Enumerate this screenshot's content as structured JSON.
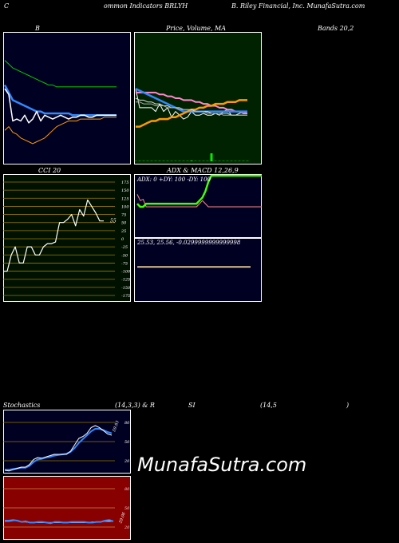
{
  "header": {
    "left": "C",
    "left2": "ommon  Indicators BRLYH",
    "right": "B. Riley Financial,  Inc. MunafaSutra.com"
  },
  "titles": {
    "bb": "B",
    "price": "Price,  Volume,  MA",
    "bands": "Bands 20,2",
    "cci": "CCI 20",
    "adx": "ADX  & MACD 12,26,9",
    "stoch": "Stochastics",
    "stoch_params": "(14,3,3) & R",
    "rsi": "SI",
    "rsi_params": "(14,5",
    "rsi_close": ")"
  },
  "adx_readout": "ADX: 0  +DY: 100  -DY: 100",
  "macd_readout": "25.53,  25.56,  -0.0299999999999998",
  "cci_last_label": "55",
  "stoch_last_label": "59.93",
  "rsi_last_label": "29.06",
  "watermark": "MunafaSutra.com",
  "colors": {
    "bb_bg": "#000022",
    "price_bg": "#002200",
    "cci_bg": "#001100",
    "adx_bg": "#000022",
    "stoch_bg": "#000022",
    "rsi_bg": "#880000",
    "blue": "#3388ff",
    "orange": "#ff9900",
    "green": "#00cc00",
    "lime": "#44ff00",
    "pink": "#ff88cc"
  },
  "chart_data": [
    {
      "type": "line",
      "title": "B",
      "series": [
        {
          "values": [
            75,
            73,
            71,
            70,
            69,
            68,
            67,
            66,
            65,
            64,
            63,
            62,
            62,
            61,
            61,
            61,
            61,
            61,
            61,
            61,
            61,
            61,
            61,
            61,
            61,
            61,
            61,
            61,
            61
          ]
        },
        {
          "values": [
            62,
            58,
            54,
            53,
            52,
            51,
            50,
            49,
            48,
            48,
            47,
            47,
            47,
            47,
            47,
            47,
            47,
            46,
            46,
            46,
            46,
            46,
            46,
            46,
            46,
            46,
            46,
            46,
            46
          ]
        },
        {
          "values": [
            38,
            40,
            37,
            36,
            34,
            33,
            32,
            31,
            32,
            33,
            34,
            36,
            38,
            40,
            41,
            42,
            43,
            43,
            43,
            44,
            44,
            44,
            44,
            44,
            44,
            45,
            45,
            45,
            45
          ]
        },
        {
          "values": [
            60,
            57,
            43,
            44,
            43,
            46,
            42,
            44,
            48,
            43,
            46,
            45,
            44,
            45,
            46,
            45,
            44,
            45,
            45,
            46,
            46,
            45,
            45,
            46,
            46,
            46,
            46,
            46,
            46
          ]
        }
      ]
    },
    {
      "type": "line",
      "title": "Price, Volume, MA",
      "series": [
        {
          "values": [
            60,
            50,
            50,
            50,
            50,
            48,
            52,
            48,
            50,
            45,
            48,
            46,
            44,
            45,
            48,
            46,
            46,
            47,
            46,
            46,
            47,
            46,
            48,
            49,
            46,
            46,
            47,
            48,
            47
          ]
        },
        {
          "values": [
            58,
            58,
            58,
            58,
            58,
            58,
            57,
            57,
            56,
            56,
            55,
            55,
            54,
            54,
            54,
            53,
            53,
            52,
            52,
            51,
            51,
            50,
            50,
            49,
            49,
            48,
            48,
            47,
            47
          ]
        },
        {
          "values": [
            60,
            59,
            58,
            57,
            56,
            55,
            54,
            53,
            52,
            51,
            50,
            49,
            48,
            48,
            48,
            48,
            48,
            48,
            48,
            48,
            48,
            48,
            48,
            48,
            48,
            48,
            48,
            48,
            48
          ]
        },
        {
          "values": [
            40,
            40,
            41,
            42,
            43,
            43,
            44,
            44,
            44,
            45,
            45,
            46,
            47,
            48,
            49,
            49,
            50,
            50,
            51,
            51,
            52,
            52,
            52,
            53,
            53,
            53,
            54,
            54,
            54
          ]
        },
        {
          "values": [
            55,
            54,
            54,
            53,
            53,
            52,
            52,
            51,
            51,
            50,
            50,
            50,
            49,
            49,
            49,
            48,
            48,
            48,
            48,
            47,
            47,
            47,
            47,
            47,
            46,
            46,
            46,
            46,
            46
          ]
        },
        {
          "values": [
            53,
            53,
            52,
            52,
            52,
            51,
            51,
            51,
            50,
            50,
            50,
            49,
            49,
            49,
            48,
            48,
            48,
            48,
            47,
            47,
            47,
            47,
            46,
            46,
            46,
            46,
            46,
            46,
            46
          ]
        }
      ],
      "volume": [
        0,
        0,
        0,
        0,
        0,
        0,
        0,
        0,
        0,
        0,
        0,
        0,
        0,
        0,
        1,
        0,
        0,
        0,
        0,
        10,
        0,
        0,
        0,
        0,
        0,
        0,
        0,
        0,
        0
      ]
    },
    {
      "type": "line",
      "title": "CCI 20",
      "ylim": [
        -175,
        175
      ],
      "yticks": [
        175,
        150,
        125,
        100,
        75,
        50,
        25,
        0,
        -25,
        -50,
        -75,
        -100,
        -125,
        -150,
        -175
      ],
      "values": [
        -100,
        -100,
        -50,
        -25,
        -75,
        -75,
        -25,
        -25,
        -50,
        -50,
        -25,
        -15,
        -15,
        -10,
        50,
        50,
        60,
        75,
        40,
        90,
        70,
        120,
        100,
        80,
        55,
        55
      ]
    },
    {
      "type": "line",
      "title": "ADX",
      "ylim": [
        0,
        100
      ],
      "series": [
        {
          "values": [
            55,
            50,
            50,
            55,
            55,
            55,
            55,
            55,
            55,
            55,
            55,
            55,
            55,
            55,
            55,
            55,
            55,
            55,
            55,
            55,
            55,
            60,
            65,
            75,
            90,
            100,
            100,
            100,
            100,
            100,
            100,
            100,
            100,
            100,
            100,
            100,
            100,
            100,
            100,
            100,
            100,
            100,
            100
          ]
        },
        {
          "values": [
            70,
            60,
            62,
            50,
            50,
            50,
            50,
            50,
            50,
            50,
            50,
            50,
            50,
            50,
            50,
            50,
            50,
            50,
            50,
            50,
            50,
            55,
            60,
            55,
            50,
            50,
            50,
            50,
            50,
            50,
            50,
            50,
            50,
            50,
            50,
            50,
            50,
            50,
            50,
            50,
            50,
            50,
            50
          ]
        }
      ]
    },
    {
      "type": "line",
      "title": "MACD 12,26,9",
      "series": [
        {
          "values": [
            25.53,
            25.53,
            25.53,
            25.53,
            25.53,
            25.53,
            25.53,
            25.53,
            25.53,
            25.53
          ]
        },
        {
          "values": [
            25.56,
            25.56,
            25.56,
            25.56,
            25.56,
            25.56,
            25.56,
            25.56,
            25.56,
            25.56
          ]
        }
      ]
    },
    {
      "type": "line",
      "title": "Stochastics (14,3,3)",
      "ylim": [
        0,
        100
      ],
      "yticks": [
        80,
        50,
        20
      ],
      "series": [
        {
          "values": [
            5,
            4,
            6,
            8,
            10,
            10,
            14,
            22,
            25,
            24,
            26,
            28,
            30,
            30,
            30,
            30,
            35,
            45,
            55,
            58,
            63,
            72,
            75,
            72,
            67,
            62,
            60
          ]
        },
        {
          "values": [
            6,
            6,
            7,
            8,
            9,
            9,
            12,
            18,
            22,
            23,
            25,
            26,
            28,
            29,
            30,
            31,
            34,
            40,
            48,
            54,
            60,
            66,
            70,
            70,
            68,
            65,
            63
          ]
        }
      ]
    },
    {
      "type": "line",
      "title": "RSI (14,5)",
      "ylim": [
        0,
        100
      ],
      "yticks": [
        80,
        50,
        20
      ],
      "series": [
        {
          "values": [
            30,
            30,
            31,
            30,
            28,
            29,
            27,
            27,
            28,
            28,
            27,
            26,
            28,
            28,
            27,
            27,
            28,
            28,
            28,
            28,
            27,
            27,
            28,
            28,
            30,
            31,
            29
          ]
        },
        {
          "values": [
            29,
            29,
            30,
            30,
            28,
            28,
            27,
            27,
            27,
            27,
            27,
            27,
            27,
            27,
            27,
            27,
            27,
            27,
            27,
            27,
            27,
            28,
            28,
            28,
            29,
            29,
            29
          ]
        }
      ]
    }
  ]
}
